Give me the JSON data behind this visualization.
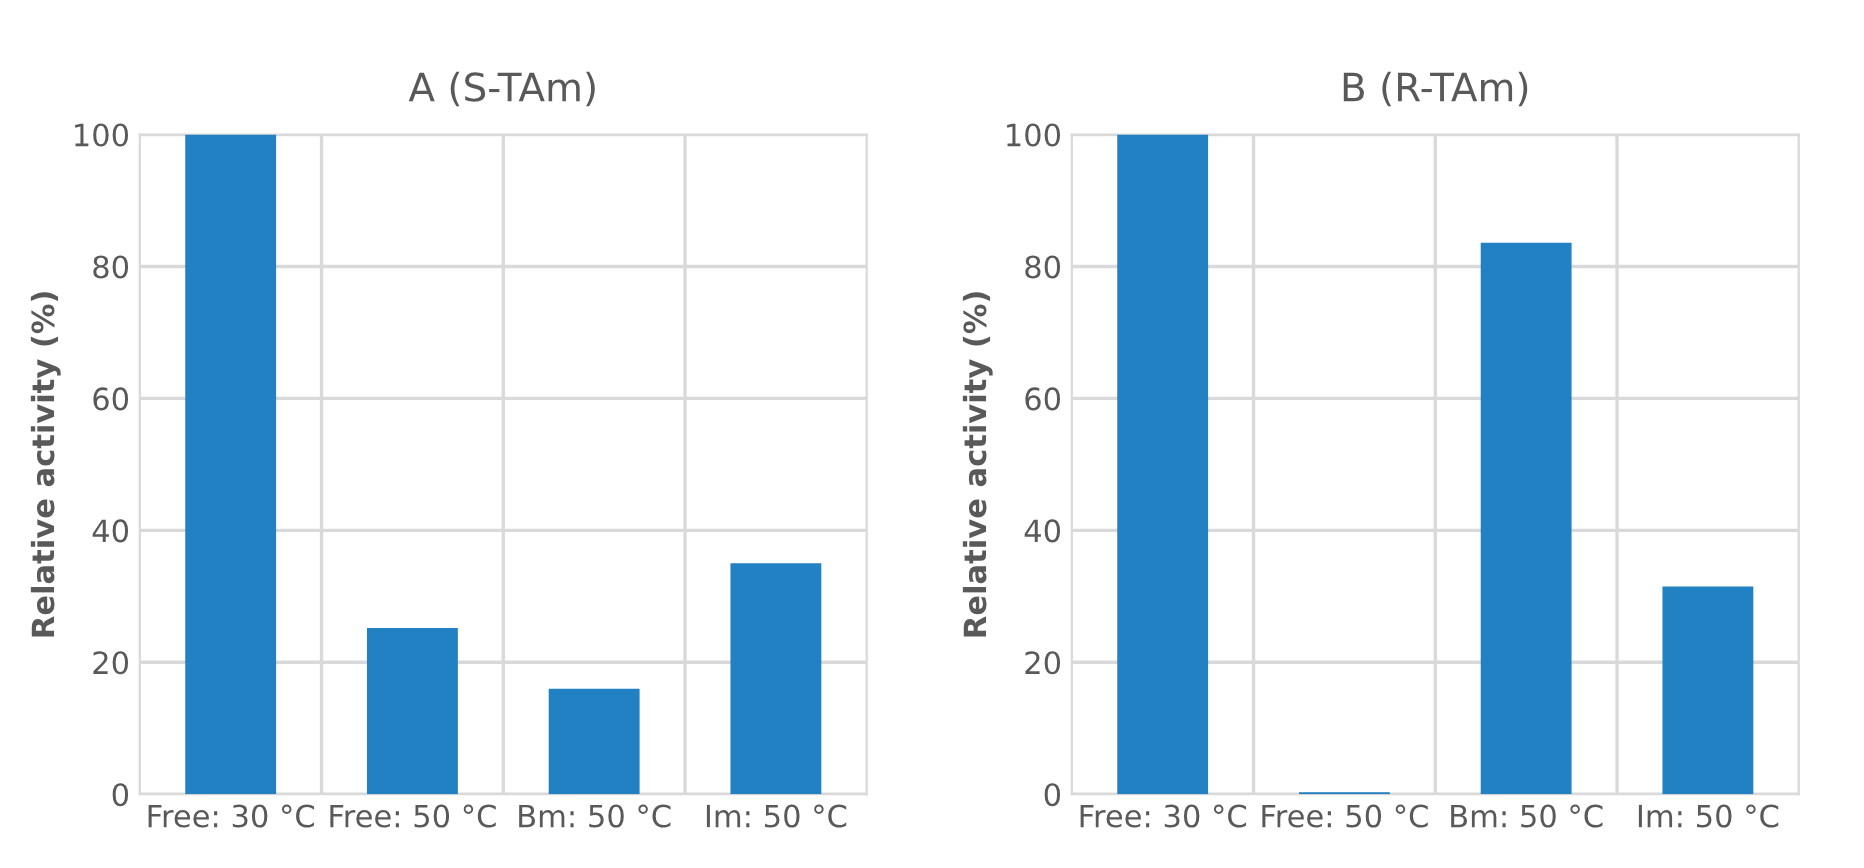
{
  "chart_data": [
    {
      "type": "bar",
      "title": "A (S-TAm)",
      "ylabel": "Relative activity (%)",
      "categories": [
        "Free: 30 °C",
        "Free: 50 °C",
        "Bm: 50 °C",
        "Im: 50 °C"
      ],
      "values": [
        100,
        25.2,
        16.0,
        35.0
      ],
      "color": "#2281c2",
      "ylim": [
        0,
        100
      ],
      "yticks": [
        0,
        20,
        40,
        60,
        80,
        100
      ],
      "grid": true
    },
    {
      "type": "bar",
      "title": "B (R-TAm)",
      "ylabel": "Relative activity (%)",
      "categories": [
        "Free: 30 °C",
        "Free: 50 °C",
        "Bm: 50 °C",
        "Im: 50 °C"
      ],
      "values": [
        100,
        0.3,
        83.6,
        31.5
      ],
      "color": "#2281c2",
      "ylim": [
        0,
        100
      ],
      "yticks": [
        0,
        20,
        40,
        60,
        80,
        100
      ],
      "grid": true
    }
  ]
}
